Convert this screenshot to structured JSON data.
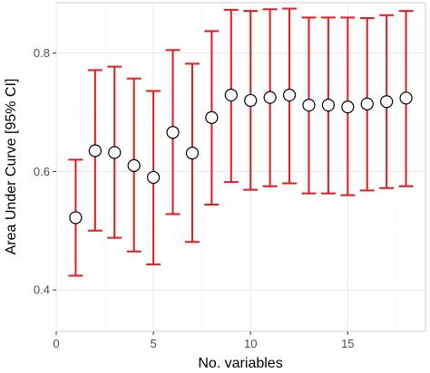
{
  "chart_data": {
    "type": "scatter",
    "xlabel": "No. variables",
    "ylabel": "Area Under Curve [95% CI]",
    "xlim": [
      0,
      19
    ],
    "ylim": [
      0.33,
      0.885
    ],
    "x_ticks": [
      0,
      5,
      10,
      15
    ],
    "x_tick_labels": [
      "0",
      "5",
      "10",
      "15"
    ],
    "y_ticks": [
      0.4,
      0.6,
      0.8
    ],
    "y_tick_labels": [
      "0.4",
      "0.6",
      "0.8"
    ],
    "grid": true,
    "legend": "none",
    "colors": {
      "errorbar": "#e41a1c",
      "point_fill": "#ffffff",
      "point_stroke": "#000000",
      "grid_major": "#ebebeb",
      "grid_minor": "#f5f5f5",
      "panel_border": "#d0d0d0"
    },
    "series": [
      {
        "x": [
          1,
          2,
          3,
          4,
          5,
          6,
          7,
          8,
          9,
          10,
          11,
          12,
          13,
          14,
          15,
          16,
          17,
          18
        ],
        "y": [
          0.522,
          0.635,
          0.632,
          0.61,
          0.59,
          0.666,
          0.631,
          0.691,
          0.729,
          0.72,
          0.725,
          0.729,
          0.712,
          0.712,
          0.709,
          0.714,
          0.718,
          0.724
        ],
        "lower": [
          0.424,
          0.5,
          0.488,
          0.465,
          0.443,
          0.528,
          0.481,
          0.544,
          0.582,
          0.569,
          0.575,
          0.58,
          0.563,
          0.563,
          0.56,
          0.568,
          0.572,
          0.575
        ],
        "upper": [
          0.62,
          0.771,
          0.777,
          0.757,
          0.736,
          0.805,
          0.782,
          0.837,
          0.873,
          0.871,
          0.874,
          0.875,
          0.86,
          0.86,
          0.86,
          0.859,
          0.864,
          0.871
        ]
      }
    ]
  }
}
